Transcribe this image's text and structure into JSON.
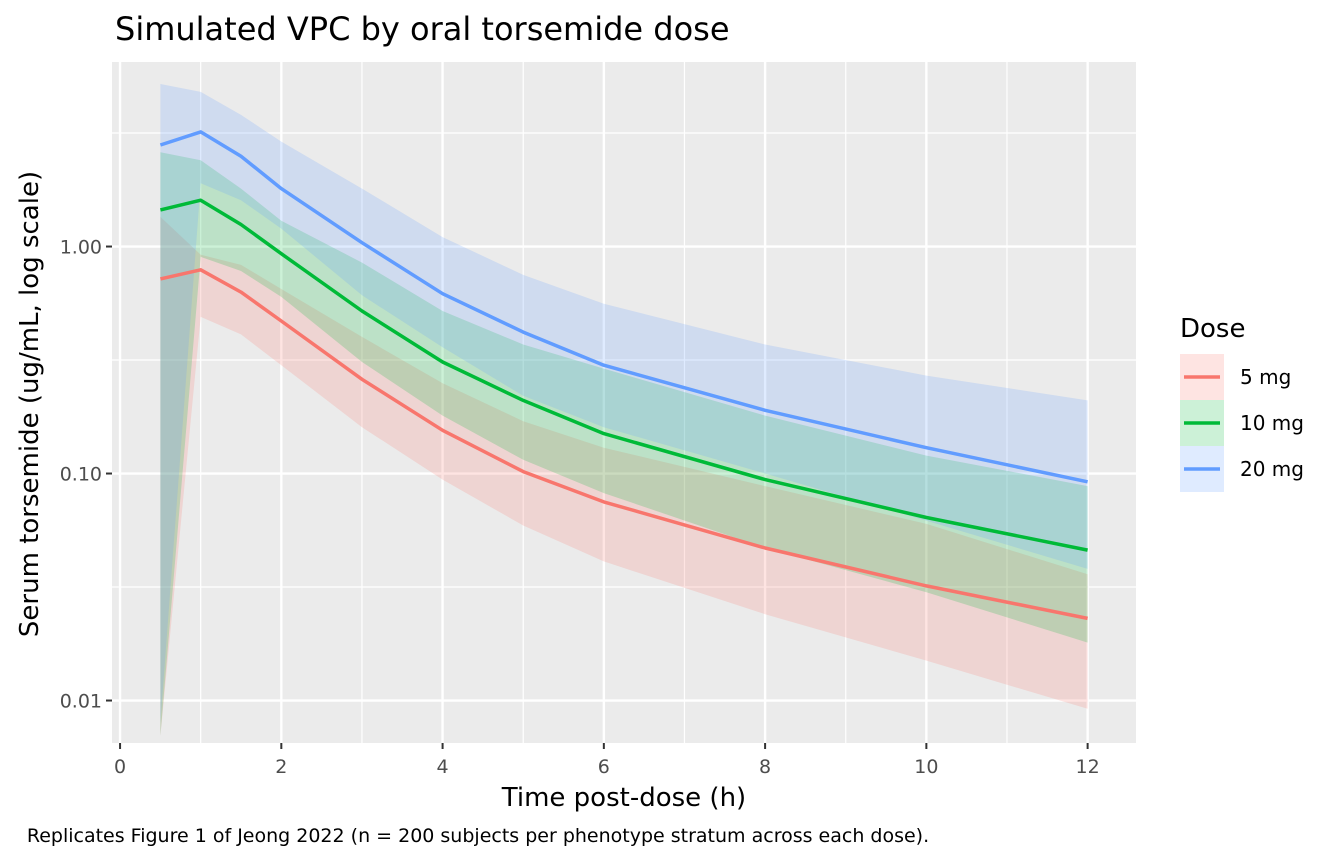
{
  "chart_data": {
    "type": "line",
    "title": "Simulated VPC by oral torsemide dose",
    "xlabel": "Time post-dose (h)",
    "ylabel": "Serum torsemide (ug/mL, log scale)",
    "caption": "Replicates Figure 1 of Jeong 2022 (n = 200 subjects per phenotype stratum across each dose).",
    "x_scale": "linear",
    "y_scale": "log10",
    "xlim": [
      -0.1,
      12.6
    ],
    "ylim": [
      0.0065,
      6.5
    ],
    "x_ticks": [
      0,
      2,
      4,
      6,
      8,
      10,
      12
    ],
    "x_tick_labels": [
      "0",
      "2",
      "4",
      "6",
      "8",
      "10",
      "12"
    ],
    "y_ticks": [
      0.01,
      0.1,
      1.0
    ],
    "y_tick_labels": [
      "0.01",
      "0.10",
      "1.00"
    ],
    "grid": true,
    "background": "#ebebeb",
    "legend": {
      "title": "Dose",
      "position": "right"
    },
    "x": [
      0.5,
      1,
      1.5,
      2,
      3,
      4,
      5,
      6,
      8,
      10,
      12
    ],
    "series": [
      {
        "name": "5 mg",
        "color": "#f8766d",
        "median": [
          0.72,
          0.79,
          0.63,
          0.47,
          0.26,
          0.155,
          0.102,
          0.075,
          0.047,
          0.032,
          0.023
        ],
        "lower": [
          0.007,
          0.49,
          0.41,
          0.3,
          0.16,
          0.094,
          0.059,
          0.041,
          0.024,
          0.015,
          0.0092
        ],
        "upper": [
          1.35,
          0.92,
          0.83,
          0.65,
          0.4,
          0.25,
          0.17,
          0.13,
          0.088,
          0.06,
          0.036
        ]
      },
      {
        "name": "10 mg",
        "color": "#00ba38",
        "median": [
          1.45,
          1.6,
          1.25,
          0.93,
          0.52,
          0.31,
          0.21,
          0.15,
          0.094,
          0.064,
          0.046
        ],
        "lower": [
          0.007,
          0.9,
          0.78,
          0.6,
          0.31,
          0.18,
          0.115,
          0.082,
          0.047,
          0.03,
          0.018
        ],
        "upper": [
          2.6,
          2.4,
          1.8,
          1.3,
          0.85,
          0.52,
          0.37,
          0.29,
          0.18,
          0.12,
          0.088
        ]
      },
      {
        "name": "20 mg",
        "color": "#619cff",
        "median": [
          2.8,
          3.2,
          2.5,
          1.8,
          1.04,
          0.62,
          0.42,
          0.3,
          0.19,
          0.13,
          0.092
        ],
        "lower": [
          0.008,
          1.9,
          1.6,
          1.2,
          0.61,
          0.36,
          0.22,
          0.16,
          0.1,
          0.062,
          0.038
        ],
        "upper": [
          5.2,
          4.8,
          3.8,
          2.9,
          1.8,
          1.1,
          0.75,
          0.56,
          0.37,
          0.27,
          0.21
        ]
      }
    ]
  }
}
